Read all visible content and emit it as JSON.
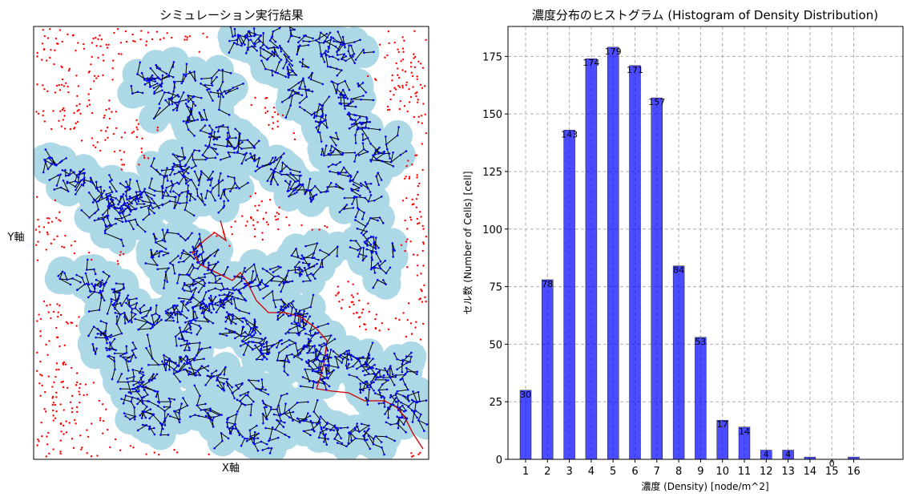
{
  "chart_data": [
    {
      "type": "scatter",
      "title": "シミュレーション実行結果",
      "xlabel": "X軸",
      "ylabel": "Y軸",
      "series": [
        {
          "name": "",
          "role": "background nodes",
          "color": "#ff0000"
        },
        {
          "name": "",
          "role": "network coverage",
          "color": "#add8e6"
        },
        {
          "name": "",
          "role": "network edges",
          "color": "#000000"
        },
        {
          "name": "",
          "role": "network nodes",
          "color": "#0000ff"
        },
        {
          "name": "",
          "role": "highlighted path",
          "color": "#cc0000"
        }
      ],
      "grid": false,
      "axis_ticks": false
    },
    {
      "type": "bar",
      "title": "濃度分布のヒストグラム (Histogram of Density Distribution)",
      "xlabel": "濃度 (Density) [node/m^2]",
      "ylabel": "セル数 (Number of Cells) [cell]",
      "categories": [
        "1",
        "2",
        "3",
        "4",
        "5",
        "6",
        "7",
        "8",
        "9",
        "10",
        "11",
        "12",
        "13",
        "14",
        "15",
        "16"
      ],
      "values": [
        30,
        78,
        143,
        174,
        179,
        171,
        157,
        84,
        53,
        17,
        14,
        4,
        4,
        1,
        0,
        1
      ],
      "data_labels": [
        "30",
        "78",
        "143",
        "174",
        "179",
        "171",
        "157",
        "84",
        "53",
        "17",
        "14",
        "4",
        "4",
        "",
        "0",
        ""
      ],
      "ylim": [
        0,
        188
      ],
      "yticks": [
        0,
        25,
        50,
        75,
        100,
        125,
        150,
        175
      ],
      "bar_color": "#0000ff",
      "bar_opacity": 0.7,
      "grid": true,
      "grid_style": "dashed"
    }
  ]
}
